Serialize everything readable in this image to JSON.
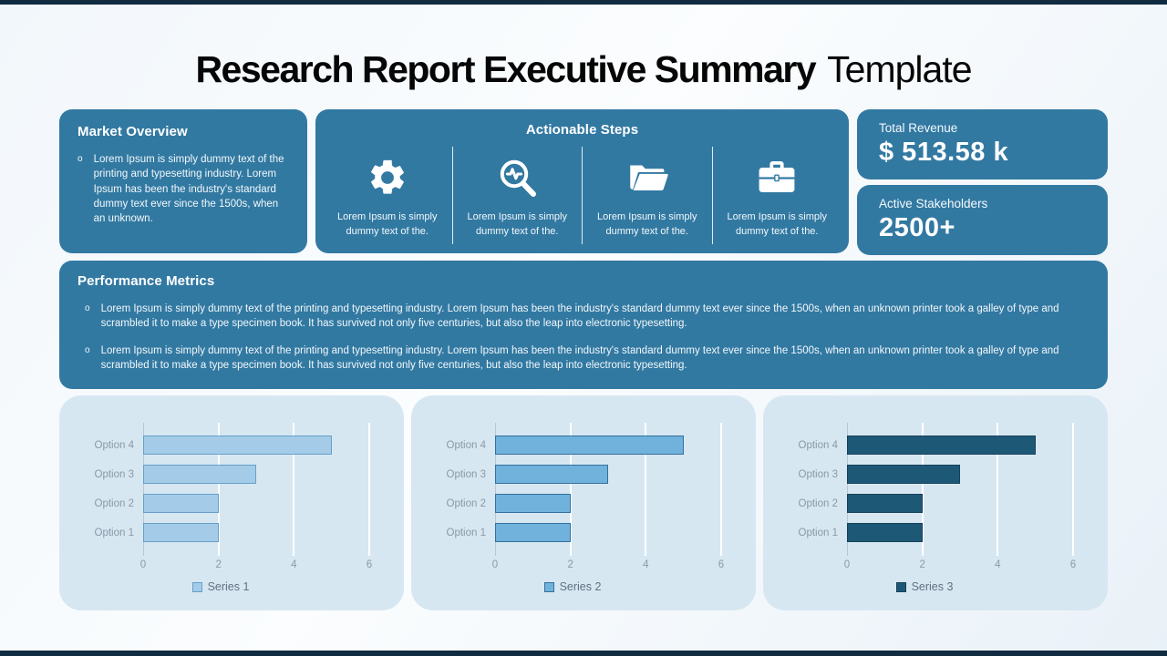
{
  "slide": {
    "title": {
      "bold": "Research Report Executive Summary",
      "light": "Template"
    },
    "market_overview": {
      "heading": "Market Overview",
      "bullet_marker": "o",
      "body": "Lorem Ipsum is simply dummy text of the printing and typesetting industry. Lorem Ipsum has been the industry's standard dummy text ever since the 1500s, when an unknown."
    },
    "actionable_steps": {
      "heading": "Actionable Steps",
      "items": [
        {
          "icon": "gear-icon",
          "text": "Lorem Ipsum is simply dummy text of the."
        },
        {
          "icon": "search-analytics-icon",
          "text": "Lorem Ipsum is simply dummy text of the."
        },
        {
          "icon": "open-folder-icon",
          "text": "Lorem Ipsum is simply dummy text of the."
        },
        {
          "icon": "briefcase-icon",
          "text": "Lorem Ipsum is simply dummy text of the."
        }
      ]
    },
    "kpis": [
      {
        "label": "Total Revenue",
        "value": "$ 513.58 k"
      },
      {
        "label": "Active Stakeholders",
        "value": "2500+"
      }
    ],
    "performance_metrics": {
      "heading": "Performance Metrics",
      "bullet_marker": "o",
      "bullets": [
        "Lorem Ipsum is simply dummy text of the printing and typesetting industry. Lorem Ipsum has been the industry's standard dummy text ever since the 1500s, when an unknown printer took a galley of type and scrambled it to make a type specimen book. It has survived not only five centuries, but also the leap into electronic typesetting.",
        "Lorem Ipsum is simply dummy text of the printing and typesetting industry. Lorem Ipsum has been the industry's standard dummy text ever since the 1500s, when an unknown printer took a galley of type and scrambled it to make a type specimen book. It has survived not only five centuries, but also the leap into electronic typesetting."
      ]
    }
  },
  "colors": {
    "card_blue": "#3279a2",
    "chart_card_bg": "#d7e7f2",
    "edge_bar": "#112b40",
    "series1": "#a4cce8",
    "series2": "#70b2db",
    "series3": "#1e5877"
  },
  "chart_data": [
    {
      "type": "bar",
      "orientation": "horizontal",
      "categories": [
        "Option 4",
        "Option 3",
        "Option 2",
        "Option 1"
      ],
      "values": [
        5,
        3,
        2,
        2
      ],
      "x_ticks": [
        0,
        2,
        4,
        6
      ],
      "xlim": [
        0,
        6
      ],
      "grid": true,
      "legend": [
        "Series 1"
      ],
      "legend_position": "bottom",
      "bar_fill": "#a4cce8",
      "bar_border": "#669fc9"
    },
    {
      "type": "bar",
      "orientation": "horizontal",
      "categories": [
        "Option 4",
        "Option 3",
        "Option 2",
        "Option 1"
      ],
      "values": [
        5,
        3,
        2,
        2
      ],
      "x_ticks": [
        0,
        2,
        4,
        6
      ],
      "xlim": [
        0,
        6
      ],
      "grid": true,
      "legend": [
        "Series 2"
      ],
      "legend_position": "bottom",
      "bar_fill": "#70b2db",
      "bar_border": "#31719d"
    },
    {
      "type": "bar",
      "orientation": "horizontal",
      "categories": [
        "Option 4",
        "Option 3",
        "Option 2",
        "Option 1"
      ],
      "values": [
        5,
        3,
        2,
        2
      ],
      "x_ticks": [
        0,
        2,
        4,
        6
      ],
      "xlim": [
        0,
        6
      ],
      "grid": true,
      "legend": [
        "Series 3"
      ],
      "legend_position": "bottom",
      "bar_fill": "#1e5877",
      "bar_border": "#16425a"
    }
  ]
}
